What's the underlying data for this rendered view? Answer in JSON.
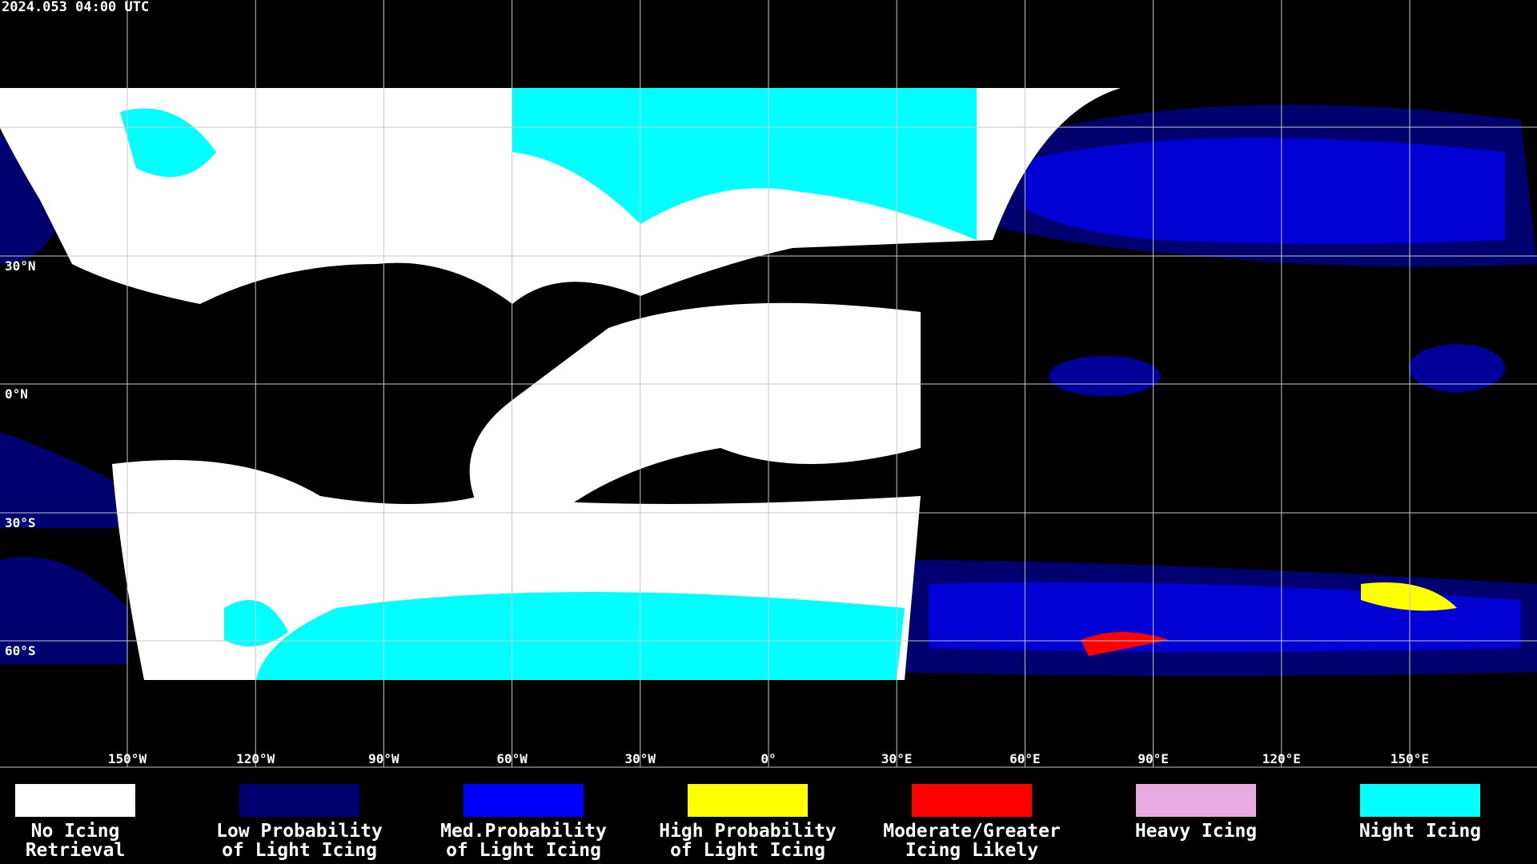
{
  "header": {
    "timestamp": "2024.053 04:00 UTC"
  },
  "map": {
    "lat_labels": [
      "30°N",
      "0°N",
      "30°S",
      "60°S"
    ],
    "lon_labels": [
      "150°W",
      "120°W",
      "90°W",
      "60°W",
      "30°W",
      "0°",
      "30°E",
      "60°E",
      "90°E",
      "120°E",
      "150°E"
    ]
  },
  "legend": {
    "items": [
      {
        "lines": [
          "No Icing",
          "Retrieval"
        ],
        "color": "#ffffff"
      },
      {
        "lines": [
          "Low Probability",
          "of Light Icing"
        ],
        "color": "#00006e"
      },
      {
        "lines": [
          "Med.Probability",
          "of Light Icing"
        ],
        "color": "#0000ff"
      },
      {
        "lines": [
          "High Probability",
          "of Light Icing"
        ],
        "color": "#ffff00"
      },
      {
        "lines": [
          "Moderate/Greater",
          "Icing Likely"
        ],
        "color": "#ff0000"
      },
      {
        "lines": [
          "Heavy Icing"
        ],
        "color": "#e8aae0"
      },
      {
        "lines": [
          "Night Icing"
        ],
        "color": "#00ffff"
      }
    ]
  }
}
